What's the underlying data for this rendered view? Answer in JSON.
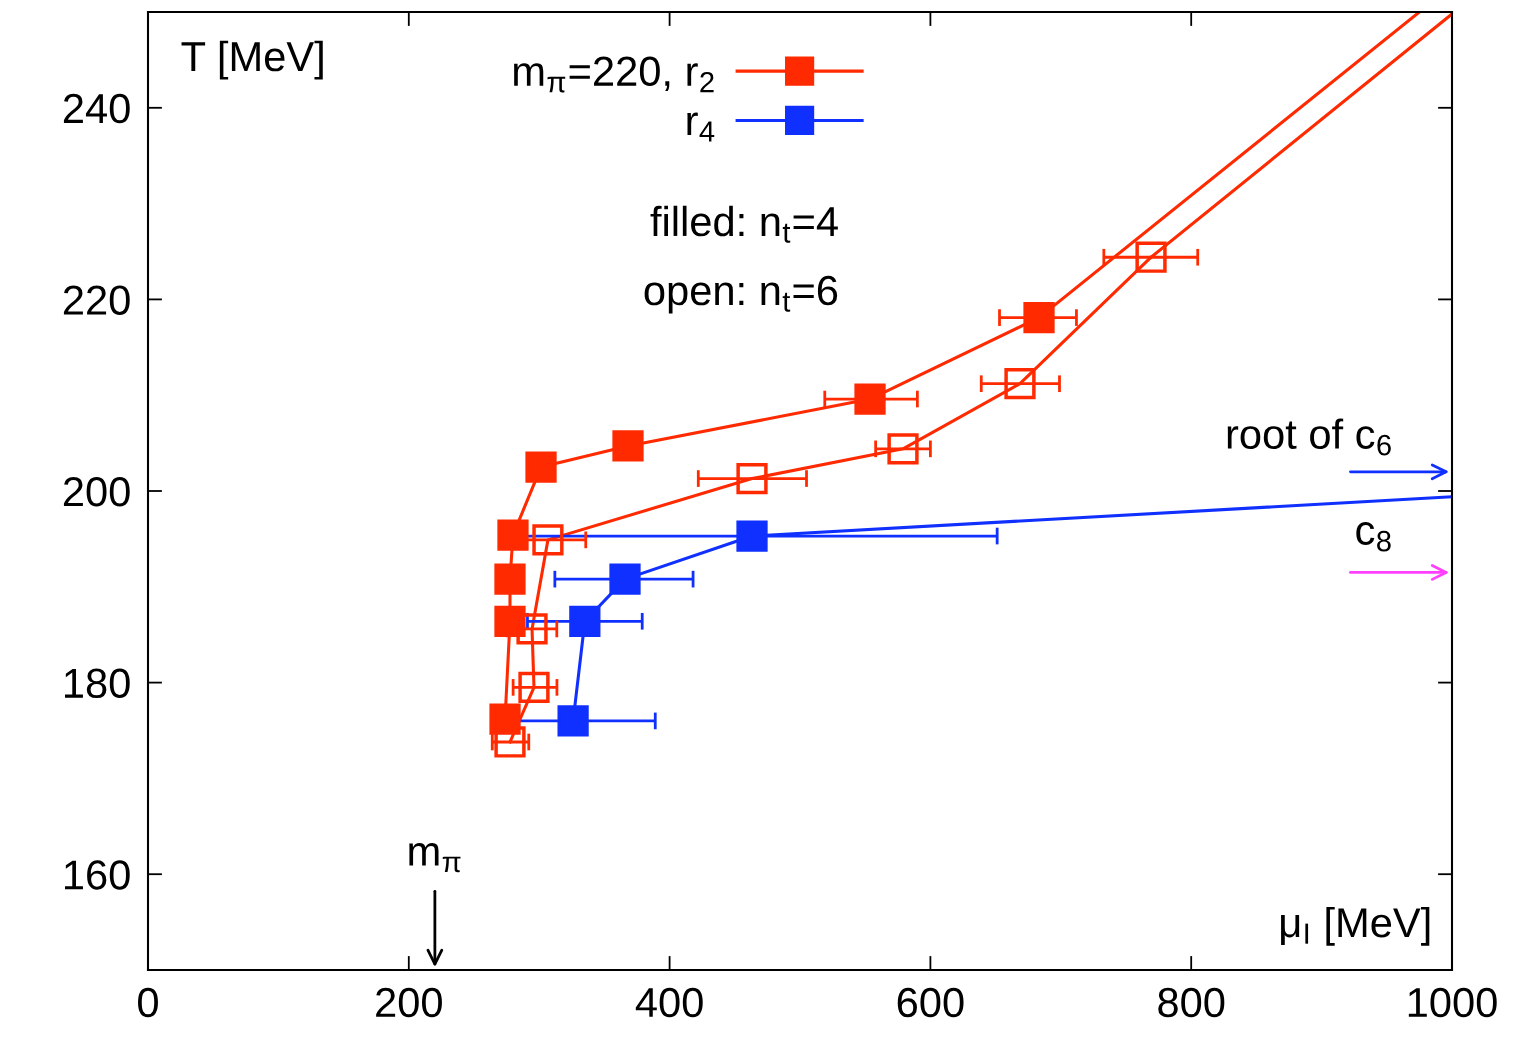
{
  "chart_data": {
    "type": "line",
    "xlabel": "μ$_{I}$ [MeV]",
    "ylabel": "T [MeV]",
    "xlim": [
      0,
      1000
    ],
    "xticks": [
      0,
      200,
      400,
      600,
      800,
      1000
    ],
    "ylim": [
      150,
      250
    ],
    "yticks": [
      160,
      180,
      200,
      220,
      240
    ],
    "grid": false,
    "legend": "top",
    "marker": "square",
    "series": [
      {
        "name": "m$_{π}$=220, r$_{2}$",
        "color": "#ff2a00",
        "x": [
          273.8,
          277.6,
          277.6,
          279.9,
          301.4,
          368.1,
          553.7,
          683.3
        ],
        "values": [
          176.2,
          186.4,
          190.8,
          195.4,
          202.5,
          204.7,
          209.6,
          218.1
        ],
        "xerrors": [
          null,
          null,
          null,
          null,
          null,
          null,
          [
            519,
            590
          ],
          [
            653,
            712
          ]
        ]
      },
      {
        "name": "r$_{4}$",
        "color": "#1030ff",
        "x": [
          326,
          335,
          365.8,
          463.2
        ],
        "values": [
          176.0,
          186.4,
          190.8,
          195.3
        ],
        "xerrors": [
          [
            264,
            389
          ],
          44,
          [
            312,
            418
          ],
          188
        ]
      },
      {
        "color": "#ff2a00",
        "marker": "square_open",
        "x": [
          277.6,
          296,
          294.5,
          306.7,
          463.2,
          579,
          668.7,
          769.2
        ],
        "values": [
          173.8,
          179.5,
          185.6,
          194.9,
          201.3,
          204.4,
          211.2,
          224.4
        ],
        "xerrors": [
          [
            264,
            292
          ],
          [
            280,
            313.6
          ],
          19,
          29,
          [
            422,
            505
          ],
          [
            558,
            600
          ],
          [
            639,
            699
          ],
          [
            733,
            805
          ]
        ]
      },
      {
        "color": "#ff2a00",
        "marker": "none",
        "x": [
          683.3,
          975
        ],
        "values": [
          218.1,
          250
        ]
      },
      {
        "color": "#ff2a00",
        "marker": "none",
        "x": [
          769.2,
          1000
        ],
        "values": [
          224.4,
          249.8
        ]
      },
      {
        "color": "#1030ff",
        "marker": "none",
        "x": [
          463.2,
          1000
        ],
        "values": [
          195.3,
          199.4
        ]
      }
    ],
    "annotations": [
      "m$_{π}$",
      "root of c$_{6}$",
      "c$_{8}$",
      "filled: n$_{t}$=4",
      "open: n$_{t}$=6"
    ]
  }
}
